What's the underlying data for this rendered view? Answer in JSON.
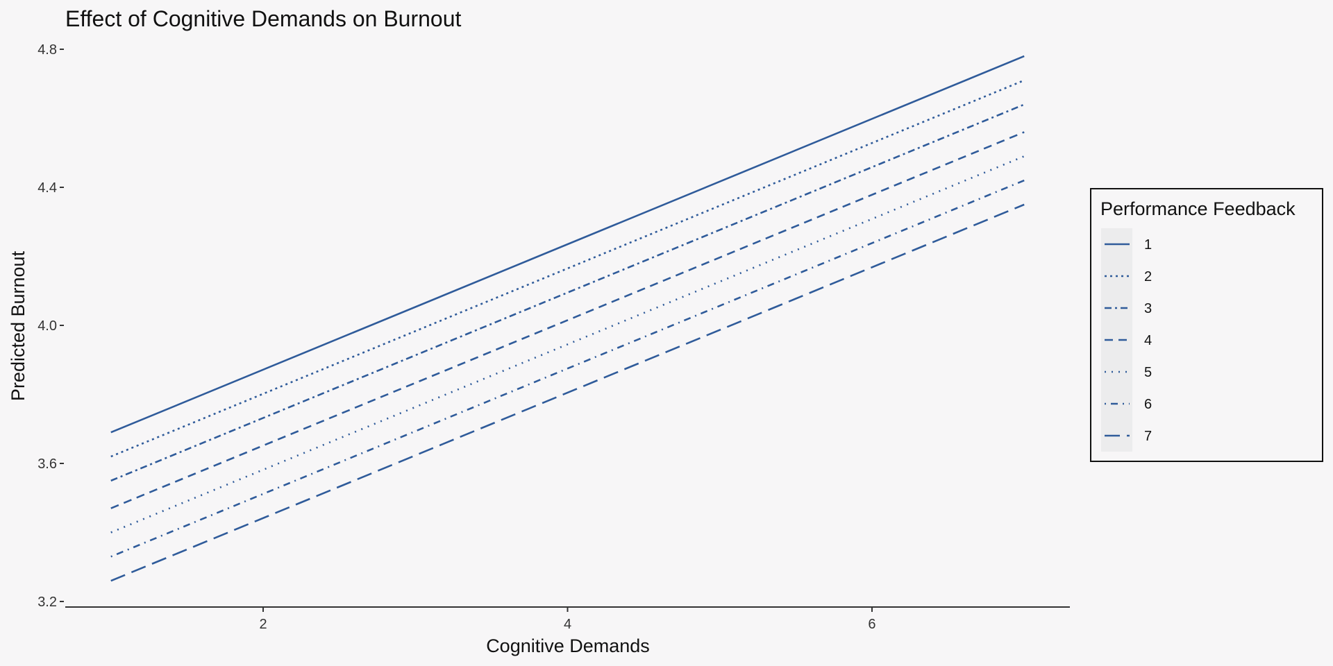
{
  "chart_data": {
    "type": "line",
    "title": "Effect of Cognitive Demands on Burnout",
    "xlabel": "Cognitive Demands",
    "ylabel": "Predicted Burnout",
    "xlim": [
      0.7,
      7.3
    ],
    "ylim": [
      3.2,
      4.8
    ],
    "x_ticks": [
      2,
      4,
      6
    ],
    "y_ticks": [
      3.2,
      3.6,
      4.0,
      4.4,
      4.8
    ],
    "y_tick_labels": [
      "3.2",
      "3.6",
      "4.0",
      "4.4",
      "4.8"
    ],
    "grid": false,
    "legend_position": "right",
    "legend_title": "Performance Feedback",
    "line_color": "#2f5b9a",
    "series": [
      {
        "name": "1",
        "linetype": "solid",
        "x": [
          1,
          7
        ],
        "y": [
          3.69,
          4.78
        ]
      },
      {
        "name": "2",
        "linetype": "dotted",
        "x": [
          1,
          7
        ],
        "y": [
          3.62,
          4.71
        ]
      },
      {
        "name": "3",
        "linetype": "dashdot",
        "x": [
          1,
          7
        ],
        "y": [
          3.55,
          4.64
        ]
      },
      {
        "name": "4",
        "linetype": "dashed",
        "x": [
          1,
          7
        ],
        "y": [
          3.47,
          4.56
        ]
      },
      {
        "name": "5",
        "linetype": "dotted2",
        "x": [
          1,
          7
        ],
        "y": [
          3.4,
          4.49
        ]
      },
      {
        "name": "6",
        "linetype": "dotdash",
        "x": [
          1,
          7
        ],
        "y": [
          3.33,
          4.42
        ]
      },
      {
        "name": "7",
        "linetype": "longdash",
        "x": [
          1,
          7
        ],
        "y": [
          3.26,
          4.35
        ]
      }
    ]
  }
}
